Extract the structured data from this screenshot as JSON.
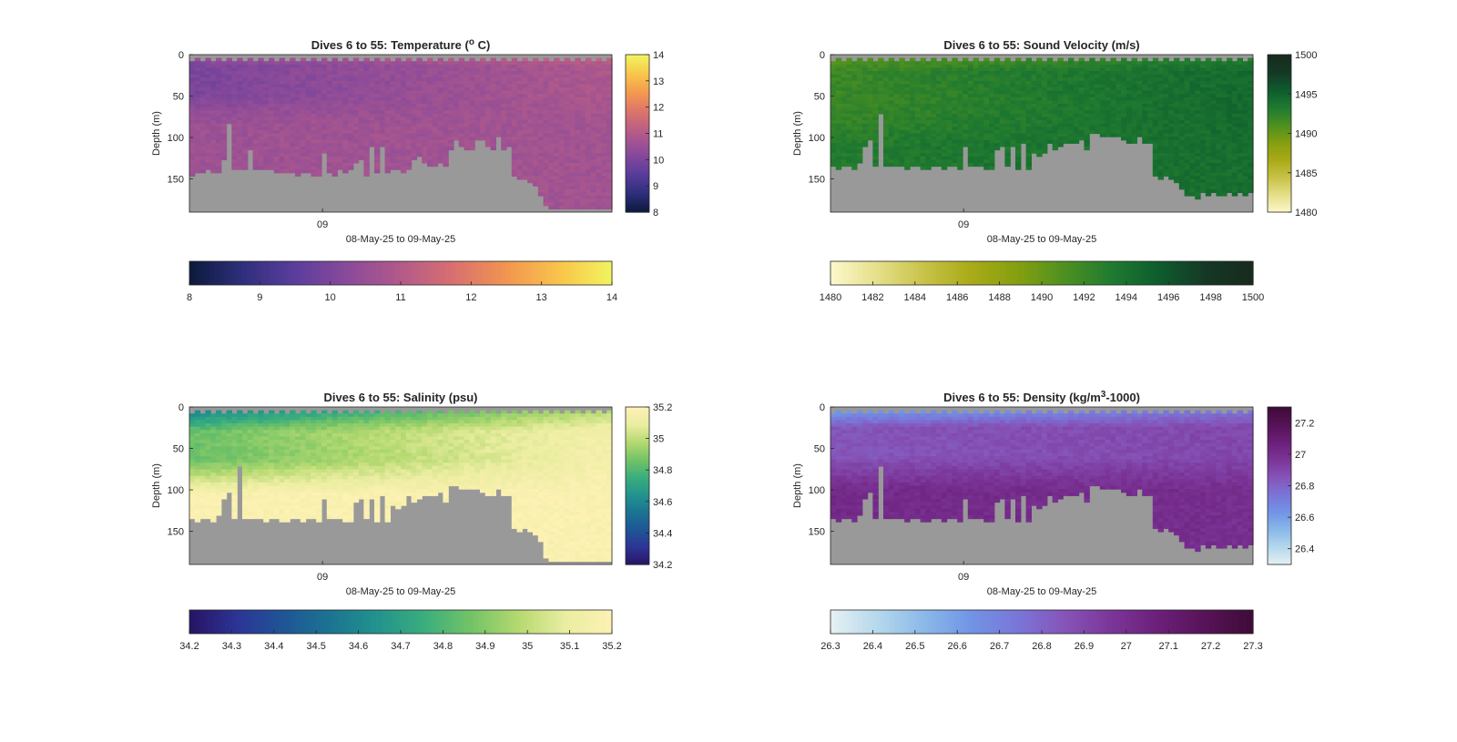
{
  "figure": {
    "background": "#ffffff",
    "nodata_color": "#999999"
  },
  "chart_data": [
    {
      "type": "heatmap",
      "variable": "temperature",
      "title": "Dives 6 to 55: Temperature (",
      "title_sup": "o",
      "title_tail": " C)",
      "ylabel": "Depth (m)",
      "xlabel": "08-May-25 to 09-May-25",
      "xtick_labels": [
        "09"
      ],
      "y_reversed": true,
      "ylim": [
        0,
        190
      ],
      "yticks": [
        0,
        50,
        100,
        150
      ],
      "clim": [
        8,
        14
      ],
      "cbar_ticks": [
        8,
        9,
        10,
        11,
        12,
        13,
        14
      ],
      "hbar_ticks": [
        8,
        9,
        10,
        11,
        12,
        13,
        14
      ],
      "colormap": [
        "#0b1a3a",
        "#2e2f7c",
        "#5b3d9c",
        "#8a4a9a",
        "#b25a8a",
        "#d8706f",
        "#f29550",
        "#f9c44b",
        "#f1f45e"
      ],
      "profile": {
        "surface_left": 10.8,
        "mid_left": 10.0,
        "deep_left": 10.6,
        "surface_right": 11.6,
        "mid_right": 10.9,
        "deep_right": 10.7,
        "shallow_zone_m": 12,
        "mid_zone_m": 45
      },
      "bottom_depths_m": [
        145,
        142,
        143,
        140,
        142,
        141,
        126,
        84,
        140,
        140,
        140,
        113,
        140,
        138,
        140,
        140,
        141,
        143,
        144,
        142,
        145,
        143,
        141,
        146,
        145,
        118,
        143,
        146,
        140,
        142,
        137,
        131,
        126,
        147,
        112,
        144,
        112,
        141,
        140,
        139,
        141,
        138,
        128,
        122,
        129,
        133,
        133,
        129,
        134,
        116,
        103,
        112,
        114,
        114,
        101,
        104,
        109,
        113,
        100,
        113,
        112,
        148,
        150,
        149,
        154,
        158,
        169,
        184,
        186,
        185,
        187,
        186,
        185,
        186,
        187,
        185,
        185,
        185,
        188,
        185
      ]
    },
    {
      "type": "heatmap",
      "variable": "sound_velocity",
      "title": "Dives 6 to 55: Sound Velocity (m/s)",
      "title_sup": "",
      "title_tail": "",
      "ylabel": "Depth (m)",
      "xlabel": "08-May-25 to 09-May-25",
      "xtick_labels": [
        "09"
      ],
      "y_reversed": true,
      "ylim": [
        0,
        190
      ],
      "yticks": [
        0,
        50,
        100,
        150
      ],
      "clim": [
        1480,
        1500
      ],
      "cbar_ticks": [
        1480,
        1485,
        1490,
        1495,
        1500
      ],
      "hbar_ticks": [
        1480,
        1482,
        1484,
        1486,
        1488,
        1490,
        1492,
        1494,
        1496,
        1498,
        1500
      ],
      "colormap": [
        "#fdf8cc",
        "#e5df8a",
        "#c8c248",
        "#a9aa17",
        "#849f0f",
        "#4d9021",
        "#1f7a30",
        "#0e5c2e",
        "#153825",
        "#172b1d"
      ],
      "profile": {
        "surface_left": 1490.2,
        "mid_left": 1492.0,
        "deep_left": 1493.2,
        "surface_right": 1492.5,
        "mid_right": 1494.6,
        "deep_right": 1494.3,
        "shallow_zone_m": 20,
        "mid_zone_m": 70
      },
      "bottom_depths_m": [
        136,
        138,
        134,
        135,
        137,
        130,
        112,
        102,
        136,
        70,
        135,
        136,
        134,
        136,
        137,
        135,
        136,
        137,
        138,
        134,
        136,
        137,
        135,
        134,
        138,
        109,
        134,
        136,
        135,
        138,
        137,
        113,
        112,
        136,
        109,
        138,
        108,
        137,
        118,
        122,
        119,
        108,
        115,
        110,
        106,
        108,
        107,
        103,
        115,
        96,
        94,
        100,
        99,
        99,
        97,
        104,
        107,
        106,
        97,
        108,
        108,
        148,
        150,
        148,
        152,
        155,
        163,
        172,
        170,
        173,
        166,
        172,
        167,
        170,
        172,
        167,
        170,
        168,
        172,
        168
      ]
    },
    {
      "type": "heatmap",
      "variable": "salinity",
      "title": "Dives 6 to 55: Salinity (psu)",
      "title_sup": "",
      "title_tail": "",
      "ylabel": "Depth (m)",
      "xlabel": "08-May-25 to 09-May-25",
      "xtick_labels": [
        "09"
      ],
      "y_reversed": true,
      "ylim": [
        0,
        190
      ],
      "yticks": [
        0,
        50,
        100,
        150
      ],
      "clim": [
        34.2,
        35.2
      ],
      "cbar_ticks": [
        34.2,
        34.4,
        34.6,
        34.8,
        35,
        35.2
      ],
      "hbar_ticks": [
        34.2,
        34.3,
        34.4,
        34.5,
        34.6,
        34.7,
        34.8,
        34.9,
        35,
        35.1,
        35.2
      ],
      "colormap": [
        "#281363",
        "#2c3495",
        "#1f5596",
        "#1b7492",
        "#22938d",
        "#3aad7e",
        "#73c366",
        "#b4d970",
        "#eaeda0",
        "#fdf1b4"
      ],
      "profile": {
        "surface_left": 34.55,
        "mid_left": 34.85,
        "deep_left": 35.18,
        "surface_right": 34.95,
        "mid_right": 35.15,
        "deep_right": 35.18,
        "shallow_zone_m": 30,
        "mid_zone_m": 65
      },
      "bottom_depths_m": [
        136,
        138,
        134,
        135,
        137,
        130,
        112,
        102,
        136,
        70,
        135,
        136,
        134,
        136,
        137,
        135,
        136,
        137,
        138,
        134,
        136,
        137,
        135,
        134,
        138,
        109,
        134,
        136,
        135,
        138,
        137,
        113,
        112,
        136,
        109,
        138,
        108,
        137,
        118,
        122,
        119,
        108,
        115,
        110,
        106,
        108,
        107,
        103,
        115,
        96,
        94,
        100,
        99,
        99,
        97,
        104,
        107,
        106,
        97,
        108,
        108,
        148,
        150,
        148,
        152,
        155,
        163,
        184,
        186,
        185,
        187,
        186,
        185,
        186,
        187,
        185,
        185,
        185,
        188,
        185
      ]
    },
    {
      "type": "heatmap",
      "variable": "density",
      "title": "Dives 6 to 55: Density (kg/m",
      "title_sup": "3",
      "title_tail": "-1000)",
      "ylabel": "Depth (m)",
      "xlabel": "08-May-25 to 09-May-25",
      "xtick_labels": [
        "09"
      ],
      "y_reversed": true,
      "ylim": [
        0,
        190
      ],
      "yticks": [
        0,
        50,
        100,
        150
      ],
      "clim": [
        26.3,
        27.3
      ],
      "cbar_ticks": [
        26.4,
        26.6,
        26.8,
        27,
        27.2
      ],
      "hbar_ticks": [
        26.3,
        26.4,
        26.5,
        26.6,
        26.7,
        26.8,
        26.9,
        27,
        27.1,
        27.2,
        27.3
      ],
      "colormap": [
        "#e6f1f3",
        "#b5d8ec",
        "#8ab9e8",
        "#7194e6",
        "#7a75d8",
        "#8654b8",
        "#7b3598",
        "#6b1f78",
        "#561357",
        "#3e0b37"
      ],
      "profile": {
        "surface_left": 26.55,
        "mid_left": 26.85,
        "deep_left": 27.02,
        "surface_right": 26.7,
        "mid_right": 26.9,
        "deep_right": 27.0,
        "shallow_zone_m": 25,
        "mid_zone_m": 60
      },
      "bottom_depths_m": [
        136,
        138,
        134,
        135,
        137,
        130,
        112,
        102,
        136,
        70,
        135,
        136,
        134,
        136,
        137,
        135,
        136,
        137,
        138,
        134,
        136,
        137,
        135,
        134,
        138,
        109,
        134,
        136,
        135,
        138,
        137,
        113,
        112,
        136,
        109,
        138,
        108,
        137,
        118,
        122,
        119,
        108,
        115,
        110,
        106,
        108,
        107,
        103,
        115,
        96,
        94,
        100,
        99,
        99,
        97,
        104,
        107,
        106,
        97,
        108,
        108,
        148,
        150,
        148,
        152,
        155,
        163,
        172,
        170,
        173,
        166,
        172,
        167,
        170,
        172,
        167,
        170,
        168,
        172,
        168
      ]
    }
  ]
}
